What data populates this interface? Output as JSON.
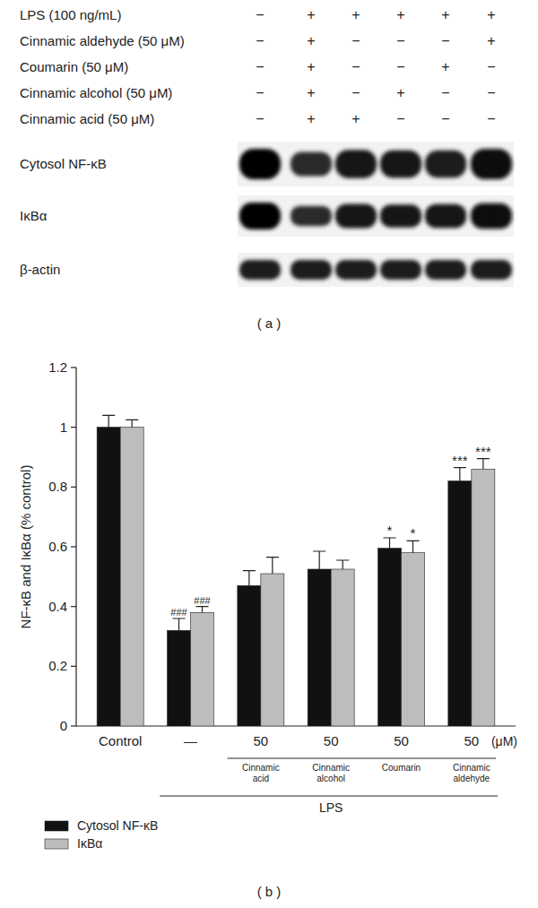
{
  "blot": {
    "treatments": [
      {
        "label": "LPS (100 ng/mL)",
        "signs": [
          "−",
          "+",
          "+",
          "+",
          "+",
          "+"
        ]
      },
      {
        "label": "Cinnamic aldehyde (50 μM)",
        "signs": [
          "−",
          "+",
          "−",
          "−",
          "−",
          "+"
        ]
      },
      {
        "label": "Coumarin (50 μM)",
        "signs": [
          "−",
          "+",
          "−",
          "−",
          "+",
          "−"
        ]
      },
      {
        "label": "Cinnamic alcohol (50 μM)",
        "signs": [
          "−",
          "+",
          "−",
          "+",
          "−",
          "−"
        ]
      },
      {
        "label": "Cinnamic acid (50 μM)",
        "signs": [
          "−",
          "+",
          "+",
          "−",
          "−",
          "−"
        ]
      }
    ],
    "bands": [
      "Cytosol NF-κB",
      "IκBα",
      "β-actin"
    ],
    "panel_label": "( a )"
  },
  "chart_data": {
    "type": "bar",
    "panel_label": "( b )",
    "y_label": "NF-κB and IκBα (% control)",
    "categories": [
      "Control",
      "—",
      "50",
      "50",
      "50",
      "50"
    ],
    "compound_labels": [
      null,
      null,
      "Cinnamic acid",
      "Cinnamic alcohol",
      "Coumarin",
      "Cinnamic aldehyde"
    ],
    "unit_label": "(μM)",
    "group_label": "LPS",
    "series": [
      {
        "name": "Cytosol NF-κB",
        "color": "#111111",
        "values": [
          1.0,
          0.32,
          0.47,
          0.525,
          0.595,
          0.82
        ],
        "errors": [
          0.04,
          0.04,
          0.05,
          0.06,
          0.035,
          0.045
        ],
        "annotations": [
          null,
          "###",
          null,
          null,
          "*",
          "***"
        ]
      },
      {
        "name": "IκBα",
        "color": "#bdbdbd",
        "values": [
          1.0,
          0.38,
          0.51,
          0.525,
          0.58,
          0.86
        ],
        "errors": [
          0.025,
          0.02,
          0.055,
          0.03,
          0.04,
          0.035
        ],
        "annotations": [
          null,
          "###",
          null,
          null,
          "*",
          "***"
        ]
      }
    ],
    "ylim": [
      0,
      1.2
    ],
    "yticks": [
      0,
      0.2,
      0.4,
      0.6,
      0.8,
      1,
      1.2
    ],
    "grid": false,
    "legend": "bottom-left"
  }
}
